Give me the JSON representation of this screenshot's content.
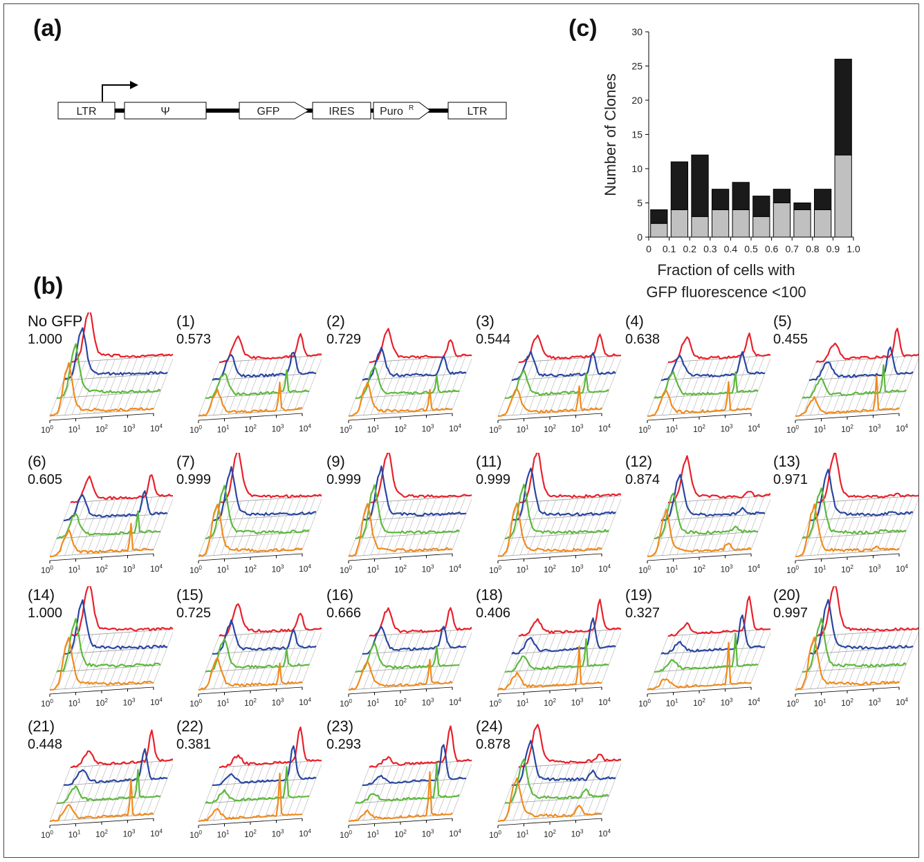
{
  "panels": {
    "a": "(a)",
    "b": "(b)",
    "c": "(c)"
  },
  "construct": {
    "elements": [
      "LTR",
      "Ψ",
      "GFP",
      "IRES",
      "Puro",
      "LTR"
    ],
    "puro_superscript": "R"
  },
  "chart_data": [
    {
      "type": "bar",
      "stacked": true,
      "panel": "(c)",
      "ylabel": "Number of Clones",
      "xlabel_line1": "Fraction of cells with",
      "xlabel_line2": "GFP fluorescence <100",
      "ylim": [
        0,
        30
      ],
      "yticks": [
        "0",
        "5",
        "10",
        "15",
        "20",
        "25",
        "30"
      ],
      "xticks": [
        "0",
        "0.1",
        "0.2",
        "0.3",
        "0.4",
        "0.5",
        "0.6",
        "0.7",
        "0.8",
        "0.9",
        "1.0"
      ],
      "bin_centers": [
        0.05,
        0.15,
        0.25,
        0.35,
        0.45,
        0.55,
        0.65,
        0.75,
        0.85,
        0.95
      ],
      "series": [
        {
          "color": "#c0c0c0",
          "values": [
            2,
            4,
            3,
            4,
            4,
            3,
            5,
            4,
            4,
            12
          ]
        },
        {
          "color": "#1a1a1a",
          "values": [
            2,
            7,
            9,
            3,
            4,
            3,
            2,
            1,
            3,
            14
          ]
        }
      ],
      "grid": false
    }
  ],
  "histograms": {
    "x_tick_exponents": [
      "0",
      "1",
      "2",
      "3",
      "4"
    ],
    "x_tick_base": "10",
    "trace_colors": [
      "#e8202a",
      "#2845a0",
      "#5cb83c",
      "#f08a1c"
    ],
    "clones": [
      {
        "id": "No GFP",
        "value": "1.000",
        "hi": 0.0
      },
      {
        "id": "(1)",
        "value": "0.573",
        "hi": 0.6
      },
      {
        "id": "(2)",
        "value": "0.729",
        "hi": 0.45
      },
      {
        "id": "(3)",
        "value": "0.544",
        "hi": 0.55
      },
      {
        "id": "(4)",
        "value": "0.638",
        "hi": 0.6
      },
      {
        "id": "(5)",
        "value": "0.455",
        "hi": 0.75
      },
      {
        "id": "(6)",
        "value": "0.605",
        "hi": 0.6
      },
      {
        "id": "(7)",
        "value": "0.999",
        "hi": 0.0
      },
      {
        "id": "(9)",
        "value": "0.999",
        "hi": 0.0
      },
      {
        "id": "(11)",
        "value": "0.999",
        "hi": 0.0
      },
      {
        "id": "(12)",
        "value": "0.874",
        "hi": 0.15
      },
      {
        "id": "(13)",
        "value": "0.971",
        "hi": 0.05
      },
      {
        "id": "(14)",
        "value": "1.000",
        "hi": 0.0
      },
      {
        "id": "(15)",
        "value": "0.725",
        "hi": 0.45
      },
      {
        "id": "(16)",
        "value": "0.666",
        "hi": 0.55
      },
      {
        "id": "(18)",
        "value": "0.406",
        "hi": 0.8
      },
      {
        "id": "(19)",
        "value": "0.327",
        "hi": 0.9
      },
      {
        "id": "(20)",
        "value": "0.997",
        "hi": 0.0
      },
      {
        "id": "(21)",
        "value": "0.448",
        "hi": 0.8
      },
      {
        "id": "(22)",
        "value": "0.381",
        "hi": 0.9
      },
      {
        "id": "(23)",
        "value": "0.293",
        "hi": 0.95
      },
      {
        "id": "(24)",
        "value": "0.878",
        "hi": 0.2
      }
    ]
  }
}
